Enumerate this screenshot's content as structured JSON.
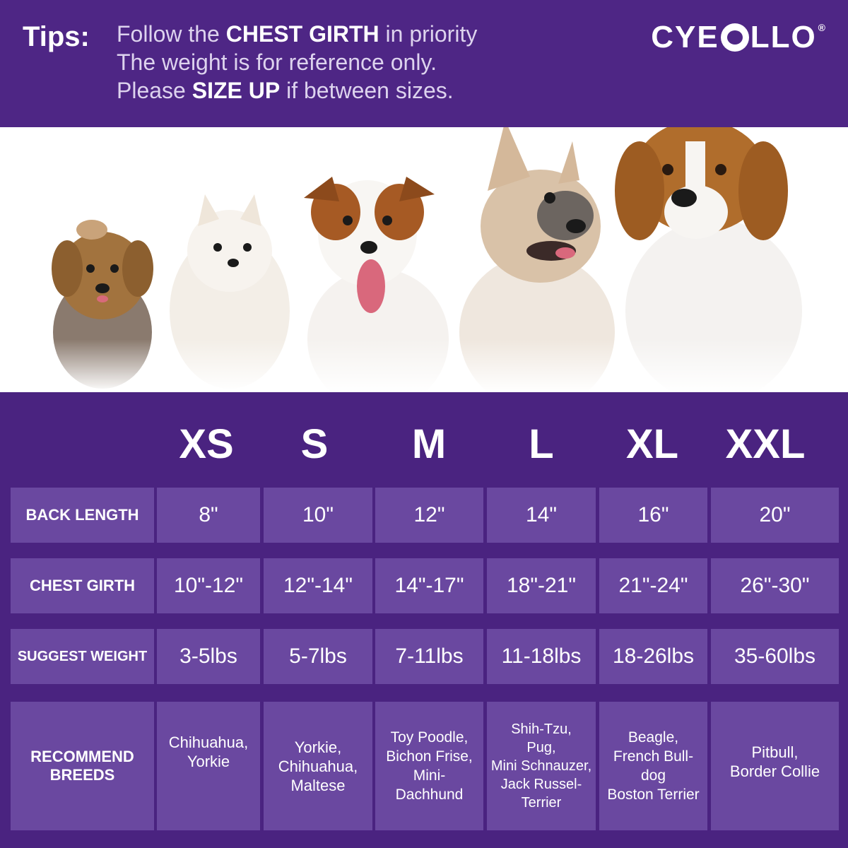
{
  "tips": {
    "label": "Tips:",
    "line1_pre": "Follow the",
    "line1_bold": "CHEST GIRTH",
    "line1_post": "in priority",
    "line2": "The weight is for reference only.",
    "line3_pre": "Please",
    "line3_bold": "SIZE UP",
    "line3_post": "if between sizes."
  },
  "brand": {
    "left": "CYE",
    "right": "LLO",
    "reg": "®"
  },
  "colors": {
    "header": "#4e2685",
    "table_bg": "#4a2380",
    "cell": "#6a48a0",
    "text": "#ffffff"
  },
  "photo": {
    "dogs": [
      "yorkie",
      "pomeranian",
      "jack-russell-terrier",
      "french-bulldog",
      "beagle"
    ]
  },
  "sizes": [
    "XS",
    "S",
    "M",
    "L",
    "XL",
    "XXL"
  ],
  "rows": {
    "back_length": {
      "label": "BACK  LENGTH",
      "values": [
        "8\"",
        "10\"",
        "12\"",
        "14\"",
        "16\"",
        "20\""
      ]
    },
    "chest_girth": {
      "label": "CHEST GIRTH",
      "values": [
        "10\"-12\"",
        "12\"-14\"",
        "14\"-17\"",
        "18\"-21\"",
        "21\"-24\"",
        "26\"-30\""
      ]
    },
    "suggest_weight": {
      "label": "SUGGEST WEIGHT",
      "values": [
        "3-5lbs",
        "5-7lbs",
        "7-11lbs",
        "11-18lbs",
        "18-26lbs",
        "35-60lbs"
      ]
    },
    "recommend_breeds": {
      "label_line1": "RECOMMEND",
      "label_line2": "BREEDS",
      "xs": [
        "Chihuahua,",
        "Yorkie"
      ],
      "s": [
        "Yorkie,",
        "Chihuahua,",
        "Maltese"
      ],
      "m": [
        "Toy Poodle,",
        "Bichon Frise,",
        "Mini-",
        "Dachhund"
      ],
      "l": [
        "Shih-Tzu,",
        "Pug,",
        "Mini Schnauzer,",
        "Jack Russel-",
        "Terrier"
      ],
      "xl": [
        "Beagle,",
        "French Bull-",
        "dog",
        "Boston Terrier"
      ],
      "xxl": [
        "Pitbull,",
        "Border Collie"
      ]
    }
  }
}
